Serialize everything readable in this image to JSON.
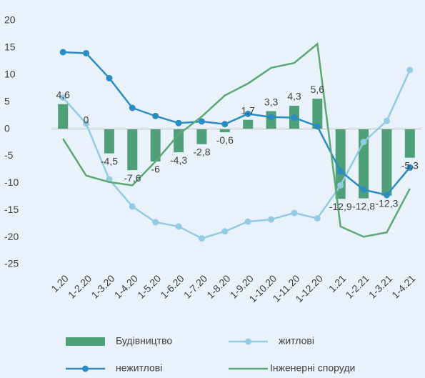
{
  "chart_data": {
    "type": "bar_line",
    "categories": [
      "1.20",
      "1-2.20",
      "1-3.20",
      "1-4.20",
      "1-5.20",
      "1-6.20",
      "1-7.20",
      "1-8.20",
      "1-9.20",
      "1-10.20",
      "1-11.20",
      "1-12.20",
      "1.21",
      "1-2.21",
      "1-3.21",
      "1-4.21"
    ],
    "series": [
      {
        "name": "Будівництво",
        "type": "bar",
        "color": "#4f9f78",
        "values": [
          4.6,
          0,
          -4.5,
          -7.6,
          -6,
          -4.3,
          -2.8,
          -0.6,
          1.7,
          3.3,
          4.3,
          5.6,
          -12.9,
          -12.8,
          -12.3,
          -5.3
        ],
        "value_labels": [
          "4,6",
          "0",
          "-4,5",
          "-7,6",
          "-6",
          "-4,3",
          "-2,8",
          "-0,6",
          "1,7",
          "3,3",
          "4,3",
          "5,6",
          "-12,9",
          "-12,8",
          "-12,3",
          "-5,3"
        ]
      },
      {
        "name": "житлові",
        "type": "line",
        "marker": true,
        "color": "#93cbe3",
        "values": [
          5.8,
          1,
          -9.3,
          -14.3,
          -17.2,
          -18,
          -20.2,
          -18.9,
          -17.1,
          -16.7,
          -15.5,
          -16.5,
          -10.4,
          -2.4,
          1.5,
          10.9
        ]
      },
      {
        "name": "нежитлові",
        "type": "line",
        "marker": true,
        "color": "#2b8cc4",
        "values": [
          14.2,
          14,
          9.4,
          3.9,
          2.4,
          1.1,
          1.4,
          0.9,
          2.8,
          2.2,
          2.1,
          0.5,
          -7.8,
          -11.2,
          -12.2,
          -7.1
        ]
      },
      {
        "name": "Інженерні споруди",
        "type": "line",
        "marker": false,
        "color": "#5aa874",
        "values": [
          -1.8,
          -8.6,
          -9.8,
          -10.4,
          -6,
          -1,
          2.3,
          6.2,
          8.4,
          11.3,
          12.2,
          15.7,
          -18,
          -19.9,
          -19.1,
          -11
        ]
      }
    ],
    "ylim": [
      -25,
      20
    ],
    "yticks": [
      -25,
      -20,
      -15,
      -10,
      -5,
      0,
      5,
      10,
      15,
      20
    ],
    "grid": false
  }
}
